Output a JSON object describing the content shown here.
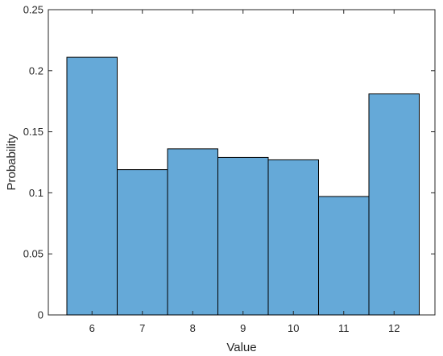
{
  "chart_data": {
    "type": "bar",
    "title": "",
    "xlabel": "Value",
    "ylabel": "Probability",
    "categories": [
      "6",
      "7",
      "8",
      "9",
      "10",
      "11",
      "12"
    ],
    "values": [
      0.211,
      0.119,
      0.136,
      0.129,
      0.127,
      0.097,
      0.181
    ],
    "ylim": [
      0,
      0.25
    ],
    "yticks": [
      0,
      0.05,
      0.1,
      0.15,
      0.2,
      0.25
    ],
    "ytick_labels": [
      "0",
      "0.05",
      "0.1",
      "0.15",
      "0.2",
      "0.25"
    ],
    "grid": false,
    "legend": "none",
    "colors": {
      "bar_fill": "#65a9d8",
      "bar_edge": "#000000",
      "axis": "#262626"
    }
  }
}
